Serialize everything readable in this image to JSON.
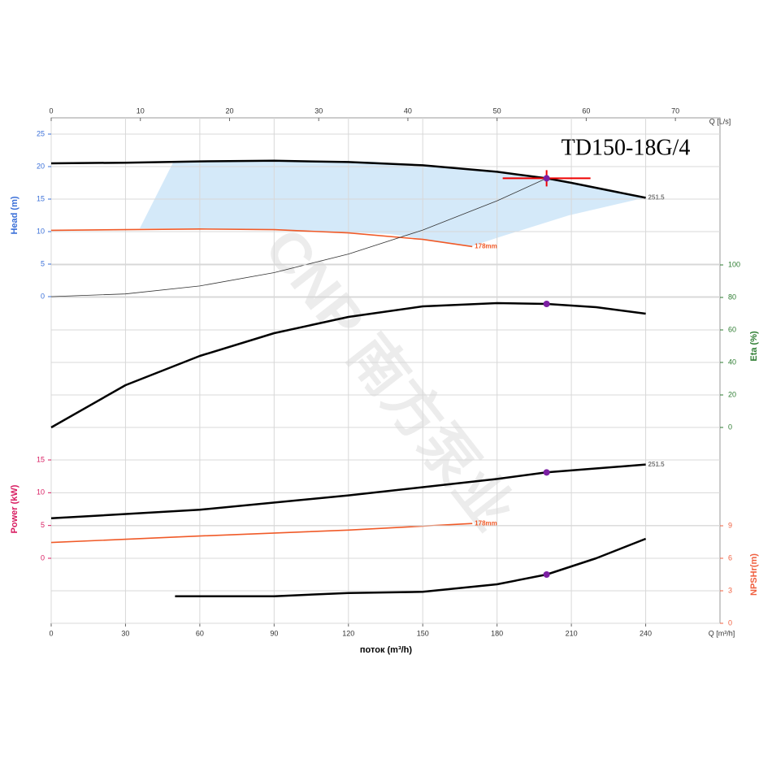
{
  "chart_data": {
    "type": "line",
    "title": "TD150-18G/4",
    "watermark": "CNP 南方泵业",
    "xlabel": "поток (m³/h)",
    "xunit": "Q [m³/h]",
    "xlim": [
      0,
      270
    ],
    "xticks": [
      0,
      30,
      60,
      90,
      120,
      150,
      180,
      210,
      240
    ],
    "x2unit": "Q [L/s]",
    "x2lim": [
      0,
      75
    ],
    "x2ticks": [
      0,
      10,
      20,
      30,
      40,
      50,
      60,
      70
    ],
    "grid": true,
    "panels": [
      {
        "ylabel": "Head (m)",
        "side": "left",
        "color": "#3a6fd8",
        "ylim": [
          0,
          25
        ],
        "yticks": [
          0,
          5,
          10,
          15,
          20,
          25
        ],
        "series": [
          {
            "name": "251.5",
            "color": "#000000",
            "width": 2.5,
            "x": [
              0,
              30,
              60,
              90,
              120,
              150,
              180,
              200,
              210,
              240
            ],
            "values": [
              20.5,
              20.6,
              20.8,
              20.9,
              20.7,
              20.2,
              19.2,
              18.2,
              17.5,
              15.2
            ]
          },
          {
            "name": "178mm",
            "color": "#f05a28",
            "width": 1.6,
            "x": [
              0,
              30,
              60,
              90,
              120,
              150,
              170
            ],
            "values": [
              10.2,
              10.3,
              10.4,
              10.3,
              9.8,
              8.8,
              7.7
            ]
          },
          {
            "color": "#333333",
            "width": 0.8,
            "x": [
              0,
              30,
              60,
              90,
              120,
              150,
              180,
              200
            ],
            "values": [
              0,
              0.41,
              1.64,
              3.69,
              6.55,
              10.24,
              14.74,
              18.2
            ]
          }
        ],
        "markers": [
          {
            "x": 200,
            "y": 18.2,
            "color": "#7b1fa2"
          }
        ]
      },
      {
        "ylabel": "Eta (%)",
        "side": "right",
        "color": "#2e7d32",
        "ylim": [
          0,
          100
        ],
        "yticks": [
          0,
          20,
          40,
          60,
          80,
          100
        ],
        "series": [
          {
            "color": "#000000",
            "width": 2.5,
            "x": [
              0,
              30,
              60,
              90,
              120,
              150,
              180,
              200,
              220,
              240
            ],
            "values": [
              0,
              26,
              44,
              58,
              68,
              74.5,
              76.5,
              76,
              74,
              70
            ]
          }
        ],
        "markers": [
          {
            "x": 200,
            "y": 76,
            "color": "#7b1fa2"
          }
        ]
      },
      {
        "ylabel": "Power (kW)",
        "side": "left",
        "color": "#d81b60",
        "ylim": [
          0,
          15
        ],
        "yticks": [
          0,
          5,
          10,
          15
        ],
        "series": [
          {
            "name": "251.5",
            "color": "#000000",
            "width": 2.5,
            "x": [
              0,
              60,
              120,
              180,
              200,
              240
            ],
            "values": [
              6.1,
              7.4,
              9.6,
              12.1,
              13.1,
              14.3
            ]
          },
          {
            "name": "178mm",
            "color": "#f05a28",
            "width": 1.6,
            "x": [
              0,
              60,
              120,
              170
            ],
            "values": [
              2.4,
              3.4,
              4.3,
              5.3
            ]
          }
        ],
        "markers": [
          {
            "x": 200,
            "y": 13.1,
            "color": "#7b1fa2"
          }
        ]
      },
      {
        "ylabel": "NPSHr(m)",
        "side": "right",
        "color": "#f06040",
        "ylim": [
          0,
          9
        ],
        "yticks": [
          0,
          3,
          6,
          9
        ],
        "series": [
          {
            "color": "#000000",
            "width": 2.5,
            "x": [
              50,
              90,
              120,
              150,
              180,
              200,
              220,
              240
            ],
            "values": [
              2.5,
              2.5,
              2.8,
              2.9,
              3.6,
              4.5,
              6.0,
              7.8
            ]
          }
        ],
        "markers": [
          {
            "x": 200,
            "y": 4.5,
            "color": "#7b1fa2"
          }
        ]
      }
    ]
  }
}
